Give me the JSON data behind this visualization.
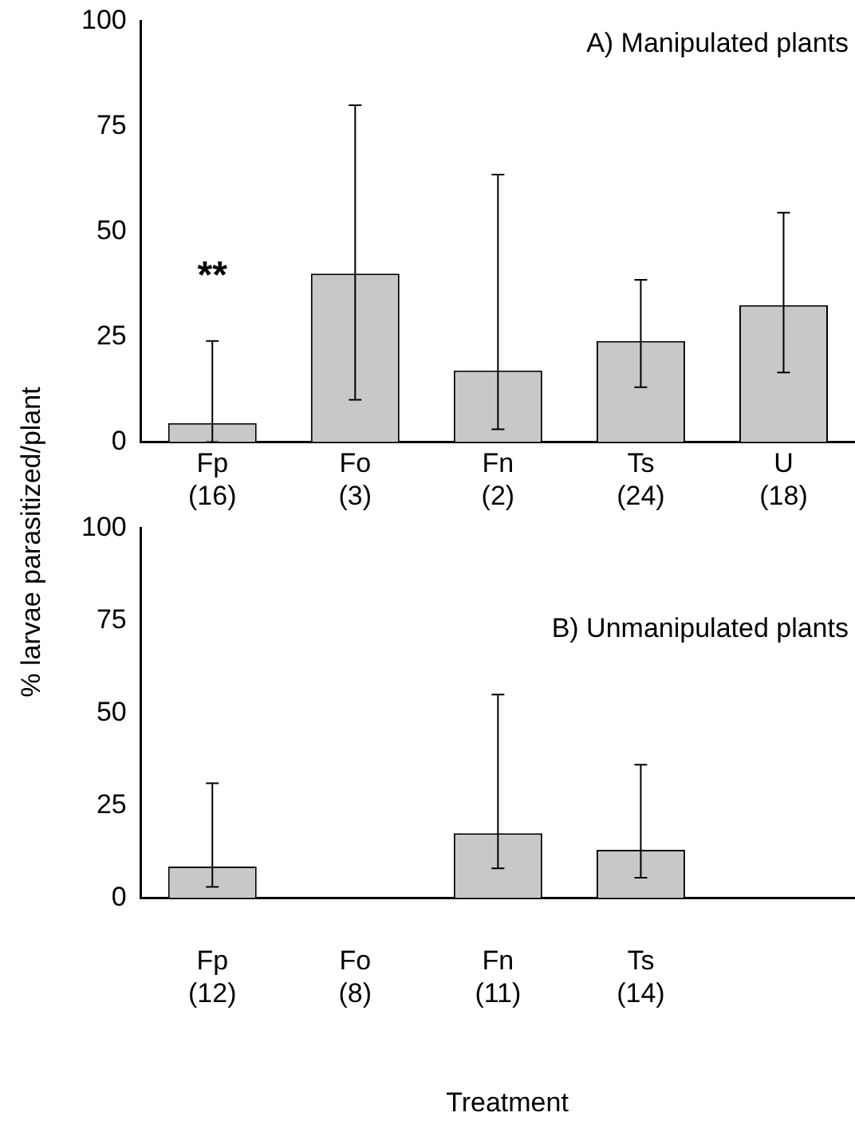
{
  "chart_data": [
    {
      "type": "bar",
      "title": "A) Manipulated plants",
      "ylabel": "% larvae parasitized/plant",
      "categories": [
        "Fp (16)",
        "Fo (3)",
        "Fn (2)",
        "Ts (24)",
        "U (18)"
      ],
      "series": [
        {
          "color": "#c8c8c8",
          "values": [
            4.5,
            40,
            17,
            24,
            32.5
          ],
          "errors": [
            [
              0,
              24
            ],
            [
              10,
              80
            ],
            [
              3,
              63.5
            ],
            [
              13,
              38.5
            ],
            [
              16.5,
              54.5
            ]
          ]
        }
      ],
      "annotations": [
        "**"
      ],
      "ylim": [
        0,
        100
      ],
      "yticks": [
        0,
        25,
        50,
        75,
        100
      ],
      "grid": false,
      "legend": false
    },
    {
      "type": "bar",
      "title": "B) Unmanipulated plants",
      "xlabel": "Treatment",
      "categories": [
        "Fp (12)",
        "Fo (8)",
        "Fn (11)",
        "Ts (14)",
        null
      ],
      "series": [
        {
          "color": "#c8c8c8",
          "values": [
            8.5,
            null,
            17.5,
            13,
            null
          ],
          "errors": [
            [
              3,
              31
            ],
            null,
            [
              8,
              55
            ],
            [
              5.5,
              36
            ],
            null
          ]
        }
      ],
      "ylim": [
        0,
        100
      ],
      "yticks": [
        0,
        25,
        50,
        75,
        100
      ],
      "grid": false,
      "legend": false
    }
  ]
}
